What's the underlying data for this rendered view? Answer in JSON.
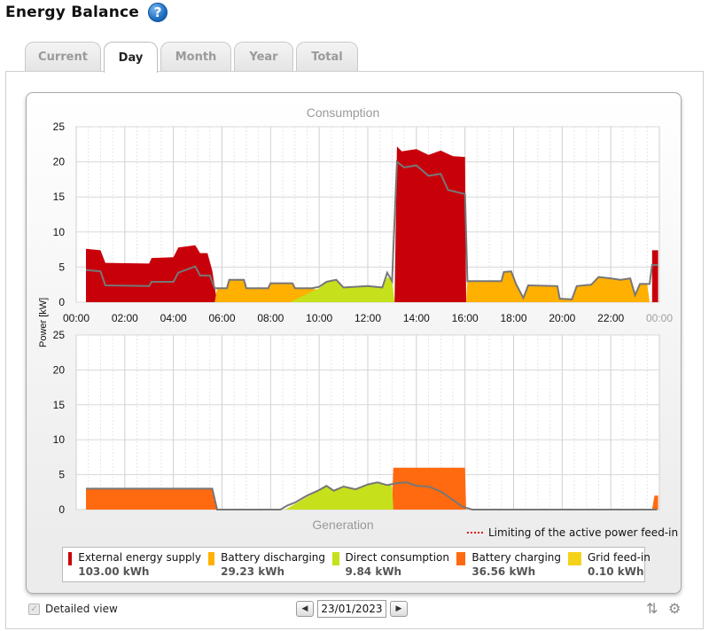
{
  "header": {
    "title": "Energy Balance",
    "help_icon": "help-icon"
  },
  "tabs": [
    {
      "label": "Current",
      "active": false
    },
    {
      "label": "Day",
      "active": true
    },
    {
      "label": "Month",
      "active": false
    },
    {
      "label": "Year",
      "active": false
    },
    {
      "label": "Total",
      "active": false
    }
  ],
  "footer": {
    "detailed_view_label": "Detailed view",
    "date": "23/01/2023",
    "prev_icon": "chevron-left-icon",
    "next_icon": "chevron-right-icon",
    "sort_icon": "sort-icon",
    "settings_icon": "gear-icon"
  },
  "limit_note": "Limiting of the active power feed-in",
  "colors": {
    "external": "#c8000a",
    "battery_discharging": "#ffb000",
    "direct": "#c6e01b",
    "battery_charging": "#ff6a10",
    "grid_feed_in": "#f5d21a",
    "total_line": "#777777",
    "limit": "#e01010"
  },
  "legend": [
    {
      "label": "External energy supply",
      "value": "103.00 kWh",
      "color": "#c8000a"
    },
    {
      "label": "Battery discharging",
      "value": "29.23 kWh",
      "color": "#ffb000"
    },
    {
      "label": "Direct consumption",
      "value": "9.84 kWh",
      "color": "#c6e01b"
    },
    {
      "label": "Battery charging",
      "value": "36.56 kWh",
      "color": "#ff6a10"
    },
    {
      "label": "Grid feed-in",
      "value": "0.10 kWh",
      "color": "#f5d21a"
    }
  ],
  "chart_data": [
    {
      "type": "area",
      "title": "Consumption",
      "ylabel": "Power [kW]",
      "ylim": [
        0,
        25
      ],
      "yticks": [
        "0",
        "5",
        "10",
        "15",
        "20",
        "25"
      ],
      "xticks": [
        "00:00",
        "02:00",
        "04:00",
        "06:00",
        "08:00",
        "10:00",
        "12:00",
        "14:00",
        "16:00",
        "18:00",
        "20:00",
        "22:00",
        "00:00"
      ],
      "xlim": [
        0,
        24
      ],
      "grid": true,
      "series": [
        {
          "name": "External energy supply",
          "color": "#c8000a",
          "points": [
            [
              0.4,
              0
            ],
            [
              0.4,
              7.6
            ],
            [
              1.0,
              7.4
            ],
            [
              1.2,
              5.6
            ],
            [
              3.0,
              5.5
            ],
            [
              3.1,
              6.3
            ],
            [
              4.0,
              6.4
            ],
            [
              4.2,
              7.8
            ],
            [
              4.9,
              8.1
            ],
            [
              5.1,
              7.0
            ],
            [
              5.4,
              7.0
            ],
            [
              5.6,
              4.5
            ],
            [
              5.8,
              0
            ],
            [
              13.1,
              0
            ],
            [
              13.2,
              22.2
            ],
            [
              13.4,
              21.5
            ],
            [
              14.0,
              21.8
            ],
            [
              14.5,
              21.0
            ],
            [
              15.0,
              21.6
            ],
            [
              15.5,
              20.8
            ],
            [
              16.0,
              20.7
            ],
            [
              16.05,
              0
            ],
            [
              23.7,
              0
            ],
            [
              23.7,
              7.4
            ],
            [
              23.95,
              7.4
            ],
            [
              23.95,
              0
            ]
          ]
        },
        {
          "name": "Battery discharging",
          "color": "#ffb000",
          "points": [
            [
              5.7,
              0
            ],
            [
              5.8,
              2.0
            ],
            [
              6.2,
              2.0
            ],
            [
              6.3,
              3.2
            ],
            [
              6.9,
              3.2
            ],
            [
              7.0,
              2.0
            ],
            [
              7.9,
              2.0
            ],
            [
              8.0,
              2.6
            ],
            [
              8.9,
              2.7
            ],
            [
              9.0,
              2.0
            ],
            [
              9.6,
              2.0
            ],
            [
              10.2,
              1.6
            ],
            [
              10.6,
              1.2
            ],
            [
              11.0,
              0.8
            ],
            [
              11.6,
              0.5
            ],
            [
              12.2,
              0.3
            ],
            [
              13.0,
              0
            ],
            [
              16.05,
              0
            ],
            [
              16.1,
              3.0
            ],
            [
              17.5,
              3.0
            ],
            [
              17.6,
              4.3
            ],
            [
              17.9,
              4.4
            ],
            [
              18.1,
              2.6
            ],
            [
              18.4,
              0.6
            ],
            [
              18.6,
              2.4
            ],
            [
              19.8,
              2.3
            ],
            [
              19.9,
              0.5
            ],
            [
              20.4,
              0.4
            ],
            [
              20.6,
              2.3
            ],
            [
              21.2,
              2.5
            ],
            [
              21.5,
              3.6
            ],
            [
              22.0,
              3.4
            ],
            [
              22.4,
              3.2
            ],
            [
              22.8,
              3.4
            ],
            [
              23.0,
              1.0
            ],
            [
              23.2,
              2.6
            ],
            [
              23.5,
              2.6
            ],
            [
              23.6,
              0
            ]
          ]
        },
        {
          "name": "Direct consumption",
          "color": "#c6e01b",
          "points": [
            [
              8.8,
              0
            ],
            [
              9.5,
              1.2
            ],
            [
              10.0,
              2.0
            ],
            [
              10.3,
              2.8
            ],
            [
              10.7,
              3.2
            ],
            [
              11.0,
              2.1
            ],
            [
              11.5,
              2.2
            ],
            [
              12.0,
              2.3
            ],
            [
              12.6,
              2.1
            ],
            [
              12.8,
              3.6
            ],
            [
              13.0,
              3.2
            ],
            [
              13.1,
              0
            ]
          ]
        }
      ],
      "total_line": [
        [
          0.4,
          4.6
        ],
        [
          1.0,
          4.4
        ],
        [
          1.2,
          2.4
        ],
        [
          3.0,
          2.3
        ],
        [
          3.1,
          2.9
        ],
        [
          4.0,
          2.9
        ],
        [
          4.2,
          4.2
        ],
        [
          4.9,
          5.1
        ],
        [
          5.1,
          3.8
        ],
        [
          5.5,
          3.8
        ],
        [
          5.7,
          2.0
        ],
        [
          6.2,
          2.0
        ],
        [
          6.3,
          3.2
        ],
        [
          6.9,
          3.2
        ],
        [
          7.0,
          2.0
        ],
        [
          7.9,
          2.0
        ],
        [
          8.0,
          2.7
        ],
        [
          8.9,
          2.7
        ],
        [
          9.0,
          2.0
        ],
        [
          9.7,
          2.0
        ],
        [
          10.0,
          2.2
        ],
        [
          10.3,
          2.9
        ],
        [
          10.7,
          3.2
        ],
        [
          11.0,
          2.1
        ],
        [
          12.0,
          2.3
        ],
        [
          12.6,
          2.1
        ],
        [
          12.8,
          4.2
        ],
        [
          13.0,
          3.0
        ],
        [
          13.2,
          20.0
        ],
        [
          13.5,
          19.2
        ],
        [
          14.0,
          19.5
        ],
        [
          14.5,
          18.0
        ],
        [
          15.0,
          18.3
        ],
        [
          15.3,
          16.0
        ],
        [
          16.0,
          15.4
        ],
        [
          16.1,
          3.0
        ],
        [
          17.5,
          3.0
        ],
        [
          17.6,
          4.3
        ],
        [
          17.9,
          4.4
        ],
        [
          18.1,
          2.6
        ],
        [
          18.4,
          0.6
        ],
        [
          18.6,
          2.4
        ],
        [
          19.8,
          2.3
        ],
        [
          19.9,
          0.5
        ],
        [
          20.4,
          0.4
        ],
        [
          20.6,
          2.3
        ],
        [
          21.2,
          2.5
        ],
        [
          21.5,
          3.6
        ],
        [
          22.0,
          3.4
        ],
        [
          22.4,
          3.2
        ],
        [
          22.8,
          3.4
        ],
        [
          23.0,
          1.0
        ],
        [
          23.2,
          2.6
        ],
        [
          23.6,
          2.6
        ],
        [
          23.7,
          5.3
        ],
        [
          23.95,
          5.3
        ]
      ]
    },
    {
      "type": "area",
      "title": "Generation",
      "ylim": [
        0,
        25
      ],
      "yticks": [
        "0",
        "5",
        "10",
        "15",
        "20",
        "25"
      ],
      "xlim": [
        0,
        24
      ],
      "grid": true,
      "series": [
        {
          "name": "Battery charging",
          "color": "#ff6a10",
          "points": [
            [
              0.4,
              0
            ],
            [
              0.4,
              3.0
            ],
            [
              5.6,
              3.0
            ],
            [
              5.8,
              0
            ],
            [
              9.0,
              0
            ],
            [
              9.5,
              0.3
            ],
            [
              10.0,
              0.8
            ],
            [
              10.5,
              0.5
            ],
            [
              11.0,
              1.0
            ],
            [
              11.5,
              0.6
            ],
            [
              12.0,
              1.2
            ],
            [
              12.5,
              0.8
            ],
            [
              13.0,
              1.0
            ],
            [
              13.05,
              6.0
            ],
            [
              16.0,
              6.0
            ],
            [
              16.05,
              0
            ],
            [
              23.7,
              0
            ],
            [
              23.8,
              2.0
            ],
            [
              23.95,
              2.0
            ],
            [
              23.95,
              0
            ]
          ]
        },
        {
          "name": "Direct consumption",
          "color": "#c6e01b",
          "points": [
            [
              8.6,
              0
            ],
            [
              9.0,
              0.8
            ],
            [
              9.5,
              1.8
            ],
            [
              10.0,
              2.8
            ],
            [
              10.3,
              3.3
            ],
            [
              10.6,
              2.6
            ],
            [
              11.0,
              3.4
            ],
            [
              11.5,
              2.9
            ],
            [
              12.0,
              3.5
            ],
            [
              12.4,
              3.9
            ],
            [
              12.8,
              3.6
            ],
            [
              13.0,
              3.4
            ],
            [
              13.05,
              0
            ]
          ]
        }
      ],
      "total_line": [
        [
          0.4,
          3.0
        ],
        [
          5.6,
          3.0
        ],
        [
          5.8,
          0
        ],
        [
          8.4,
          0
        ],
        [
          8.7,
          0.6
        ],
        [
          9.0,
          1.0
        ],
        [
          9.5,
          2.0
        ],
        [
          10.0,
          2.8
        ],
        [
          10.3,
          3.4
        ],
        [
          10.6,
          2.7
        ],
        [
          11.0,
          3.3
        ],
        [
          11.5,
          2.9
        ],
        [
          12.0,
          3.6
        ],
        [
          12.4,
          3.9
        ],
        [
          12.8,
          3.5
        ],
        [
          13.2,
          3.8
        ],
        [
          13.6,
          3.9
        ],
        [
          14.0,
          3.4
        ],
        [
          14.5,
          3.3
        ],
        [
          15.0,
          2.6
        ],
        [
          15.5,
          1.4
        ],
        [
          15.9,
          0.4
        ],
        [
          16.3,
          0
        ],
        [
          23.9,
          0
        ]
      ]
    }
  ]
}
